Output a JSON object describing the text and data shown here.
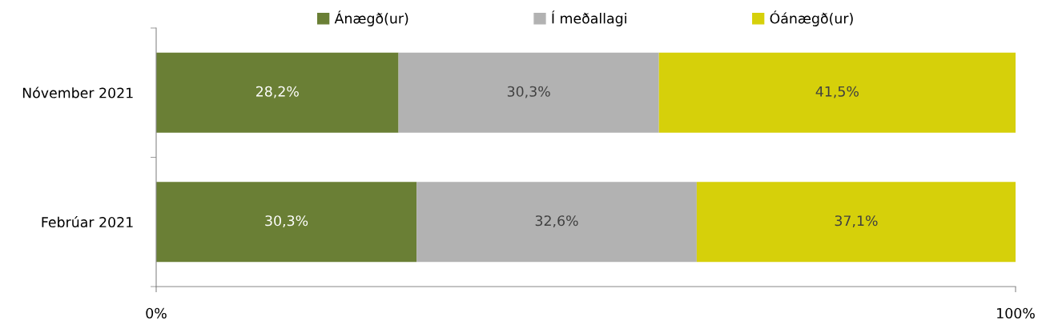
{
  "chart_data": {
    "type": "bar",
    "orientation": "horizontal",
    "stacked": true,
    "categories": [
      "Nóvember 2021",
      "Febrúar 2021"
    ],
    "series": [
      {
        "name": "Ánægð(ur)",
        "color": "#6a7f35",
        "values": [
          28.2,
          30.3
        ],
        "value_labels": [
          "28,2%",
          "30,3%"
        ]
      },
      {
        "name": "Í meðallagi",
        "color": "#b2b2b2",
        "values": [
          30.3,
          32.6
        ],
        "value_labels": [
          "30,3%",
          "32,6%"
        ]
      },
      {
        "name": "Óánægð(ur)",
        "color": "#d6d00a",
        "values": [
          41.5,
          37.1
        ],
        "value_labels": [
          "41,5%",
          "37,1%"
        ]
      }
    ],
    "xlim": [
      0,
      100
    ],
    "xticks": [
      {
        "value": 0,
        "label": "0%"
      },
      {
        "value": 100,
        "label": "100%"
      }
    ],
    "grid": false,
    "legend": "top"
  }
}
